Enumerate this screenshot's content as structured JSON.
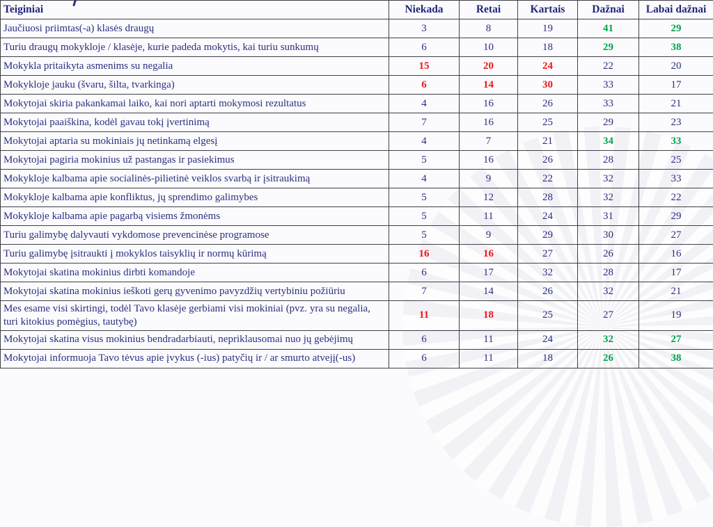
{
  "page": {
    "background_color": "#fbfbfd",
    "text_color_navy": "#2a2f7e",
    "highlight_green": "#00a452",
    "highlight_red": "#f21515",
    "border_color": "#3f3f46"
  },
  "watermark": {
    "description": "sunburst-rays-circle",
    "ray_color": "#e9e9f0"
  },
  "table": {
    "header": {
      "statement_label": "Teiginiai",
      "frequency_labels": [
        "Niekada",
        "Retai",
        "Kartais",
        "Dažnai",
        "Labai dažnai"
      ]
    },
    "rows": [
      {
        "statement": "Jaučiuosi priimtas(-a) klasės draugų",
        "values": [
          3,
          8,
          19,
          41,
          29
        ],
        "styles": [
          "normal",
          "normal",
          "normal",
          "green",
          "green"
        ]
      },
      {
        "statement": "Turiu draugų mokykloje / klasėje, kurie padeda mokytis, kai turiu sunkumų",
        "values": [
          6,
          10,
          18,
          29,
          38
        ],
        "styles": [
          "normal",
          "normal",
          "normal",
          "green",
          "green"
        ]
      },
      {
        "statement": "Mokykla pritaikyta asmenims su negalia",
        "values": [
          15,
          20,
          24,
          22,
          20
        ],
        "styles": [
          "red",
          "red",
          "red",
          "normal",
          "normal"
        ]
      },
      {
        "statement": "Mokykloje jauku (švaru, šilta, tvarkinga)",
        "values": [
          6,
          14,
          30,
          33,
          17
        ],
        "styles": [
          "red",
          "red",
          "red",
          "normal",
          "normal"
        ]
      },
      {
        "statement": "Mokytojai skiria pakankamai laiko, kai nori aptarti mokymosi rezultatus",
        "values": [
          4,
          16,
          26,
          33,
          21
        ],
        "styles": [
          "normal",
          "normal",
          "normal",
          "normal",
          "normal"
        ]
      },
      {
        "statement": "Mokytojai paaiškina, kodėl gavau tokį įvertinimą",
        "values": [
          7,
          16,
          25,
          29,
          23
        ],
        "styles": [
          "normal",
          "normal",
          "normal",
          "normal",
          "normal"
        ]
      },
      {
        "statement": "Mokytojai aptaria su mokiniais jų netinkamą elgesį",
        "values": [
          4,
          7,
          21,
          34,
          33
        ],
        "styles": [
          "normal",
          "normal",
          "normal",
          "green",
          "green"
        ]
      },
      {
        "statement": "Mokytojai pagiria mokinius už pastangas ir pasiekimus",
        "values": [
          5,
          16,
          26,
          28,
          25
        ],
        "styles": [
          "normal",
          "normal",
          "normal",
          "normal",
          "normal"
        ]
      },
      {
        "statement": "Mokykloje kalbama apie socialinės-pilietinė veiklos svarbą ir įsitraukimą",
        "values": [
          4,
          9,
          22,
          32,
          33
        ],
        "styles": [
          "normal",
          "normal",
          "normal",
          "normal",
          "normal"
        ]
      },
      {
        "statement": "Mokykloje kalbama apie konfliktus, jų sprendimo galimybes",
        "values": [
          5,
          12,
          28,
          32,
          22
        ],
        "styles": [
          "normal",
          "normal",
          "normal",
          "normal",
          "normal"
        ]
      },
      {
        "statement": "Mokykloje kalbama apie pagarbą visiems žmonėms",
        "values": [
          5,
          11,
          24,
          31,
          29
        ],
        "styles": [
          "normal",
          "normal",
          "normal",
          "normal",
          "normal"
        ]
      },
      {
        "statement": "Turiu galimybę dalyvauti vykdomose prevencinėse programose",
        "values": [
          5,
          9,
          29,
          30,
          27
        ],
        "styles": [
          "normal",
          "normal",
          "normal",
          "normal",
          "normal"
        ]
      },
      {
        "statement": "Turiu galimybę įsitraukti į mokyklos taisyklių ir normų kūrimą",
        "values": [
          16,
          16,
          27,
          26,
          16
        ],
        "styles": [
          "red",
          "red",
          "normal",
          "normal",
          "normal"
        ]
      },
      {
        "statement": "Mokytojai skatina mokinius dirbti komandoje",
        "values": [
          6,
          17,
          32,
          28,
          17
        ],
        "styles": [
          "normal",
          "normal",
          "normal",
          "normal",
          "normal"
        ]
      },
      {
        "statement": "Mokytojai skatina mokinius ieškoti gerų gyvenimo pavyzdžių vertybiniu požiūriu",
        "values": [
          7,
          14,
          26,
          32,
          21
        ],
        "styles": [
          "normal",
          "normal",
          "normal",
          "normal",
          "normal"
        ]
      },
      {
        "statement": "Mes esame visi skirtingi, todėl Tavo klasėje gerbiami visi mokiniai (pvz. yra su negalia, turi kitokius pomėgius, tautybę)",
        "values": [
          11,
          18,
          25,
          27,
          19
        ],
        "styles": [
          "red",
          "red",
          "normal",
          "normal",
          "normal"
        ]
      },
      {
        "statement": "Mokytojai skatina visus mokinius bendradarbiauti, nepriklausomai nuo jų gebėjimų",
        "values": [
          6,
          11,
          24,
          32,
          27
        ],
        "styles": [
          "normal",
          "normal",
          "normal",
          "green",
          "green"
        ]
      },
      {
        "statement": "Mokytojai informuoja Tavo tėvus apie įvykus (-ius) patyčių ir / ar smurto atvejį(-us)",
        "values": [
          6,
          11,
          18,
          26,
          38
        ],
        "styles": [
          "normal",
          "normal",
          "normal",
          "green",
          "green"
        ]
      }
    ]
  }
}
